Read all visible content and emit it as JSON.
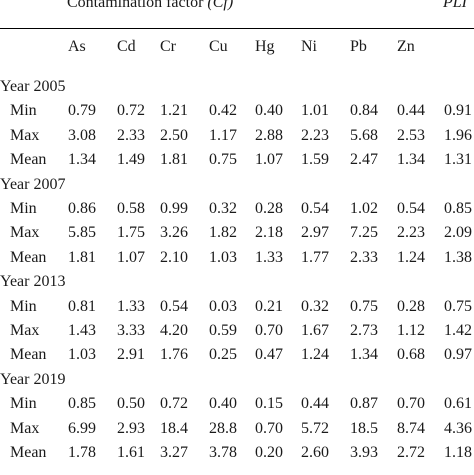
{
  "header": {
    "group_title": "Contamination factor ",
    "group_title_symbol": "(Cf)",
    "pli_label": "PLI",
    "columns": [
      "As",
      "Cd",
      "Cr",
      "Cu",
      "Hg",
      "Ni",
      "Pb",
      "Zn"
    ]
  },
  "groups": [
    {
      "year": "Year 2005",
      "rows": [
        {
          "label": "Min",
          "values": [
            "0.79",
            "0.72",
            "1.21",
            "0.42",
            "0.40",
            "1.01",
            "0.84",
            "0.44"
          ],
          "pli": "0.91"
        },
        {
          "label": "Max",
          "values": [
            "3.08",
            "2.33",
            "2.50",
            "1.17",
            "2.88",
            "2.23",
            "5.68",
            "2.53"
          ],
          "pli": "1.96"
        },
        {
          "label": "Mean",
          "values": [
            "1.34",
            "1.49",
            "1.81",
            "0.75",
            "1.07",
            "1.59",
            "2.47",
            "1.34"
          ],
          "pli": "1.31"
        }
      ]
    },
    {
      "year": "Year 2007",
      "rows": [
        {
          "label": "Min",
          "values": [
            "0.86",
            "0.58",
            "0.99",
            "0.32",
            "0.28",
            "0.54",
            "1.02",
            "0.54"
          ],
          "pli": "0.85"
        },
        {
          "label": "Max",
          "values": [
            "5.85",
            "1.75",
            "3.26",
            "1.82",
            "2.18",
            "2.97",
            "7.25",
            "2.23"
          ],
          "pli": "2.09"
        },
        {
          "label": "Mean",
          "values": [
            "1.81",
            "1.07",
            "2.10",
            "1.03",
            "1.33",
            "1.77",
            "2.33",
            "1.24"
          ],
          "pli": "1.38"
        }
      ]
    },
    {
      "year": "Year 2013",
      "rows": [
        {
          "label": "Min",
          "values": [
            "0.81",
            "1.33",
            "0.54",
            "0.03",
            "0.21",
            "0.32",
            "0.75",
            "0.28"
          ],
          "pli": "0.75"
        },
        {
          "label": "Max",
          "values": [
            "1.43",
            "3.33",
            "4.20",
            "0.59",
            "0.70",
            "1.67",
            "2.73",
            "1.12"
          ],
          "pli": "1.42"
        },
        {
          "label": "Mean",
          "values": [
            "1.03",
            "2.91",
            "1.76",
            "0.25",
            "0.47",
            "1.24",
            "1.34",
            "0.68"
          ],
          "pli": "0.97"
        }
      ]
    },
    {
      "year": "Year 2019",
      "rows": [
        {
          "label": "Min",
          "values": [
            "0.85",
            "0.50",
            "0.72",
            "0.40",
            "0.15",
            "0.44",
            "0.87",
            "0.70"
          ],
          "pli": "0.61"
        },
        {
          "label": "Max",
          "values": [
            "6.99",
            "2.93",
            "18.4",
            "28.8",
            "0.70",
            "5.72",
            "18.5",
            "8.74"
          ],
          "pli": "4.36"
        },
        {
          "label": "Mean",
          "values": [
            "1.78",
            "1.61",
            "3.27",
            "3.78",
            "0.20",
            "2.60",
            "3.93",
            "2.72"
          ],
          "pli": "1.18"
        }
      ]
    }
  ]
}
